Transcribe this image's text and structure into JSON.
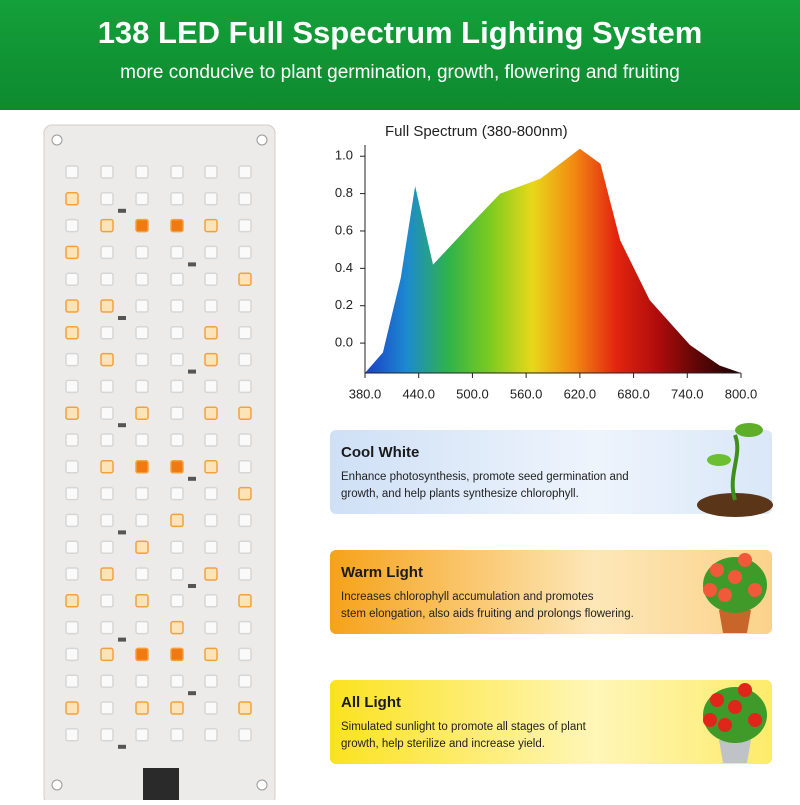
{
  "header": {
    "title": "138 LED Full Sspectrum Lighting System",
    "subtitle": "more conducive to plant germination, growth, flowering and fruiting"
  },
  "chart_data": {
    "type": "area",
    "title": "Full Spectrum (380-800nm)",
    "x": [
      380,
      400,
      420,
      436,
      456,
      497,
      531,
      576,
      598,
      620,
      643,
      665,
      698,
      743,
      776,
      800
    ],
    "values": [
      -0.16,
      -0.05,
      0.35,
      0.84,
      0.42,
      0.63,
      0.8,
      0.88,
      0.96,
      1.04,
      0.96,
      0.55,
      0.23,
      -0.01,
      -0.12,
      -0.16
    ],
    "colors": [
      "#1a3fc8",
      "#1c8ad0",
      "#2fb34a",
      "#7ccb1f",
      "#e8d81a",
      "#f28a12",
      "#e3250f",
      "#b00c0c",
      "#5a0606",
      "#1a0101"
    ],
    "xlim": [
      380,
      800
    ],
    "ylim": [
      -0.16,
      1.06
    ],
    "xticks": [
      {
        "value": 380,
        "label": "380.0"
      },
      {
        "value": 440,
        "label": "440.0"
      },
      {
        "value": 500,
        "label": "500.0"
      },
      {
        "value": 560,
        "label": "560.0"
      },
      {
        "value": 620,
        "label": "620.0"
      },
      {
        "value": 680,
        "label": "680.0"
      },
      {
        "value": 740,
        "label": "740.0"
      },
      {
        "value": 800,
        "label": "800.0"
      }
    ],
    "yticks": [
      {
        "value": 0,
        "label": "0.0"
      },
      0.2,
      0.4,
      0.6,
      0.8,
      {
        "value": 1,
        "label": "1.0"
      }
    ]
  },
  "cards": [
    {
      "title": "Cool White",
      "lines": [
        "Enhance photosynthesis, promote seed germination and",
        "growth, and help plants synthesize chlorophyll."
      ]
    },
    {
      "title": "Warm Light",
      "lines": [
        "Increases chlorophyll accumulation and promotes",
        "stem elongation, also aids fruiting and prolongs flowering."
      ]
    },
    {
      "title": "All Light",
      "lines": [
        "Simulated sunlight to promote all stages of plant",
        "growth, help sterilize and increase yield."
      ]
    }
  ]
}
